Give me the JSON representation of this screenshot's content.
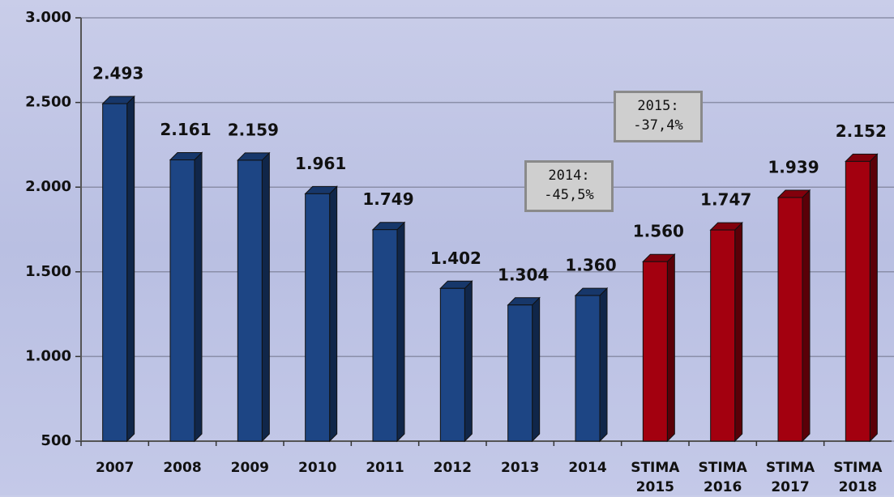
{
  "chart_data": {
    "type": "bar",
    "categories": [
      "2007",
      "2008",
      "2009",
      "2010",
      "2011",
      "2012",
      "2013",
      "2014",
      "STIMA\n2015",
      "STIMA\n2016",
      "STIMA\n2017",
      "STIMA\n2018"
    ],
    "values": [
      2493,
      2161,
      2159,
      1961,
      1749,
      1402,
      1304,
      1360,
      1560,
      1747,
      1939,
      2152
    ],
    "value_labels": [
      "2.493",
      "2.161",
      "2.159",
      "1.961",
      "1.749",
      "1.402",
      "1.304",
      "1.360",
      "1.560",
      "1.747",
      "1.939",
      "2.152"
    ],
    "colors": [
      "#1d4584",
      "#1d4584",
      "#1d4584",
      "#1d4584",
      "#1d4584",
      "#1d4584",
      "#1d4584",
      "#1d4584",
      "#a3000f",
      "#a3000f",
      "#a3000f",
      "#a3000f"
    ],
    "ylim": [
      500,
      3000
    ],
    "yticks": [
      500,
      {
        "value": 1000,
        "label": "1.000"
      },
      {
        "value": 1500,
        "label": "1.500"
      },
      {
        "value": 2000,
        "label": "2.000"
      },
      {
        "value": 2500,
        "label": "2.500"
      },
      {
        "value": 3000,
        "label": "3.000"
      }
    ],
    "grid": true,
    "annotations": [
      "2015:\n-37,4%",
      "2014:\n-45,5%"
    ]
  }
}
